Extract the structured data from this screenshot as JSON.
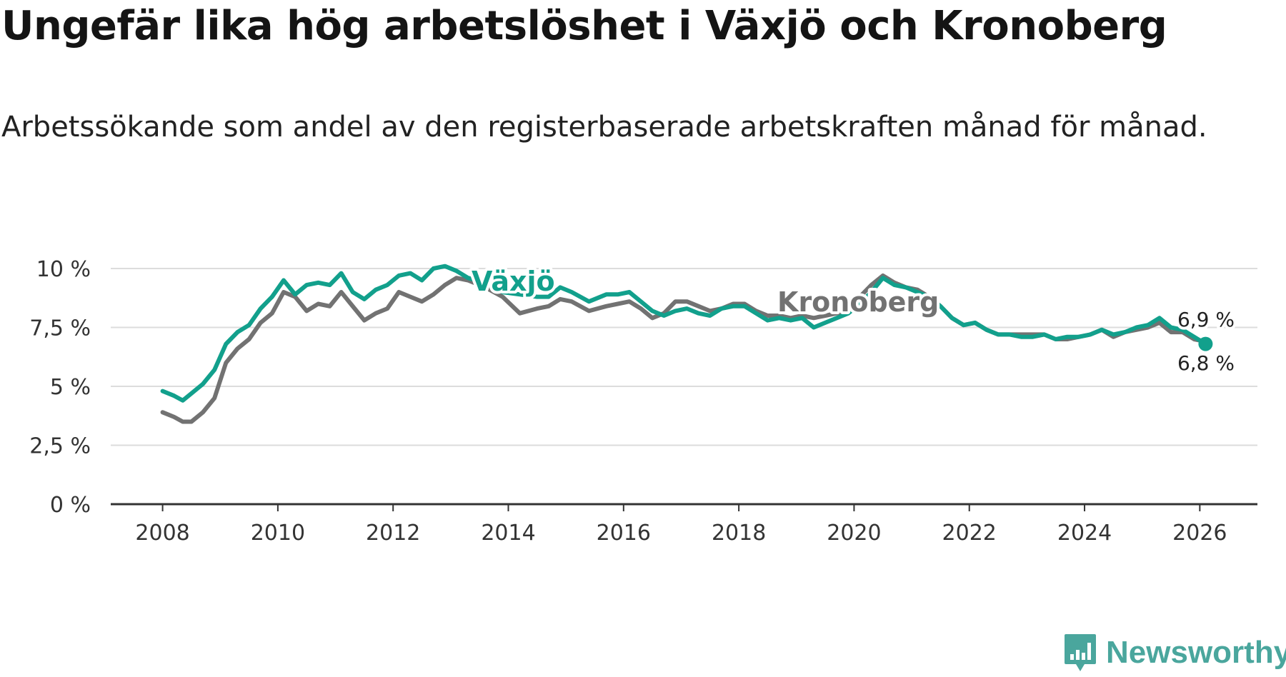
{
  "header": {
    "title": "Ungefär lika hög arbetslöshet i Växjö och Kronoberg",
    "subtitle": "Arbetssökande som andel av den registerbaserade arbetskraften månad för månad."
  },
  "brand": {
    "name": "Newsworthy",
    "icon": "newsworthy-chart-icon"
  },
  "colors": {
    "vaxjo": "#12a08c",
    "kronoberg": "#727272",
    "grid": "#dcdcdc",
    "axis": "#333333"
  },
  "chart_data": {
    "type": "line",
    "title": "Ungefär lika hög arbetslöshet i Växjö och Kronoberg",
    "xlabel": "",
    "ylabel": "",
    "xlim": [
      2007.1,
      2027.0
    ],
    "ylim": [
      0,
      10
    ],
    "grid": true,
    "yticks": [
      0,
      2.5,
      5,
      7.5,
      10
    ],
    "ytick_labels": [
      "0 %",
      "2,5 %",
      "5 %",
      "7,5 %",
      "10 %"
    ],
    "xticks": [
      2008,
      2010,
      2012,
      2014,
      2016,
      2018,
      2020,
      2022,
      2024,
      2026
    ],
    "xtick_labels": [
      "2008",
      "2010",
      "2012",
      "2014",
      "2016",
      "2018",
      "2020",
      "2022",
      "2024",
      "2026"
    ],
    "series": [
      {
        "name": "Växjö",
        "end_label": "6,8 %",
        "x": [
          2008.0,
          2008.2,
          2008.35,
          2008.5,
          2008.7,
          2008.9,
          2009.1,
          2009.3,
          2009.5,
          2009.7,
          2009.9,
          2010.1,
          2010.3,
          2010.5,
          2010.7,
          2010.9,
          2011.1,
          2011.3,
          2011.5,
          2011.7,
          2011.9,
          2012.1,
          2012.3,
          2012.5,
          2012.7,
          2012.9,
          2013.1,
          2013.3,
          2013.6,
          2013.9,
          2014.2,
          2014.5,
          2014.7,
          2014.9,
          2015.1,
          2015.4,
          2015.7,
          2015.9,
          2016.1,
          2016.3,
          2016.5,
          2016.7,
          2016.9,
          2017.1,
          2017.3,
          2017.5,
          2017.7,
          2017.9,
          2018.1,
          2018.3,
          2018.5,
          2018.7,
          2018.9,
          2019.1,
          2019.3,
          2019.5,
          2019.7,
          2019.9,
          2020.1,
          2020.3,
          2020.5,
          2020.7,
          2020.9,
          2021.1,
          2021.3,
          2021.5,
          2021.7,
          2021.9,
          2022.1,
          2022.3,
          2022.5,
          2022.7,
          2022.9,
          2023.1,
          2023.3,
          2023.5,
          2023.7,
          2023.9,
          2024.1,
          2024.3,
          2024.5,
          2024.7,
          2024.9,
          2025.1,
          2025.3,
          2025.5,
          2025.7,
          2025.9,
          2026.1
        ],
        "values": [
          4.8,
          4.6,
          4.4,
          4.7,
          5.1,
          5.7,
          6.8,
          7.3,
          7.6,
          8.3,
          8.8,
          9.5,
          8.9,
          9.3,
          9.4,
          9.3,
          9.8,
          9.0,
          8.7,
          9.1,
          9.3,
          9.7,
          9.8,
          9.5,
          10.0,
          10.1,
          9.9,
          9.6,
          9.4,
          9.0,
          8.9,
          8.8,
          8.8,
          9.2,
          9.0,
          8.6,
          8.9,
          8.9,
          9.0,
          8.6,
          8.2,
          8.0,
          8.2,
          8.3,
          8.1,
          8.0,
          8.3,
          8.4,
          8.4,
          8.1,
          7.8,
          7.9,
          7.8,
          7.9,
          7.5,
          7.7,
          7.9,
          8.1,
          8.5,
          9.0,
          9.6,
          9.3,
          9.2,
          9.0,
          8.8,
          8.4,
          7.9,
          7.6,
          7.7,
          7.4,
          7.2,
          7.2,
          7.1,
          7.1,
          7.2,
          7.0,
          7.1,
          7.1,
          7.2,
          7.4,
          7.2,
          7.3,
          7.5,
          7.6,
          7.9,
          7.5,
          7.4,
          7.1,
          6.8
        ]
      },
      {
        "name": "Kronoberg",
        "end_label": "6,9 %",
        "x": [
          2008.0,
          2008.2,
          2008.35,
          2008.5,
          2008.7,
          2008.9,
          2009.1,
          2009.3,
          2009.5,
          2009.7,
          2009.9,
          2010.1,
          2010.3,
          2010.5,
          2010.7,
          2010.9,
          2011.1,
          2011.3,
          2011.5,
          2011.7,
          2011.9,
          2012.1,
          2012.3,
          2012.5,
          2012.7,
          2012.9,
          2013.1,
          2013.3,
          2013.6,
          2013.9,
          2014.2,
          2014.5,
          2014.7,
          2014.9,
          2015.1,
          2015.4,
          2015.7,
          2015.9,
          2016.1,
          2016.3,
          2016.5,
          2016.7,
          2016.9,
          2017.1,
          2017.3,
          2017.5,
          2017.7,
          2017.9,
          2018.1,
          2018.3,
          2018.5,
          2018.7,
          2018.9,
          2019.1,
          2019.3,
          2019.5,
          2019.7,
          2019.9,
          2020.1,
          2020.3,
          2020.5,
          2020.7,
          2020.9,
          2021.1,
          2021.3,
          2021.5,
          2021.7,
          2021.9,
          2022.1,
          2022.3,
          2022.5,
          2022.7,
          2022.9,
          2023.1,
          2023.3,
          2023.5,
          2023.7,
          2023.9,
          2024.1,
          2024.3,
          2024.5,
          2024.7,
          2024.9,
          2025.1,
          2025.3,
          2025.5,
          2025.7,
          2025.9,
          2026.1
        ],
        "values": [
          3.9,
          3.7,
          3.5,
          3.5,
          3.9,
          4.5,
          6.0,
          6.6,
          7.0,
          7.7,
          8.1,
          9.0,
          8.8,
          8.2,
          8.5,
          8.4,
          9.0,
          8.4,
          7.8,
          8.1,
          8.3,
          9.0,
          8.8,
          8.6,
          8.9,
          9.3,
          9.6,
          9.5,
          9.2,
          8.8,
          8.1,
          8.3,
          8.4,
          8.7,
          8.6,
          8.2,
          8.4,
          8.5,
          8.6,
          8.3,
          7.9,
          8.1,
          8.6,
          8.6,
          8.4,
          8.2,
          8.3,
          8.5,
          8.5,
          8.2,
          8.0,
          8.0,
          7.9,
          8.0,
          7.9,
          8.0,
          8.1,
          8.2,
          8.8,
          9.3,
          9.7,
          9.4,
          9.2,
          9.1,
          8.8,
          8.4,
          7.9,
          7.6,
          7.7,
          7.4,
          7.2,
          7.2,
          7.2,
          7.2,
          7.2,
          7.0,
          7.0,
          7.1,
          7.2,
          7.4,
          7.1,
          7.3,
          7.4,
          7.5,
          7.7,
          7.3,
          7.3,
          7.0,
          6.9
        ]
      }
    ],
    "annotations": [
      "Växjö",
      "Kronoberg"
    ]
  }
}
